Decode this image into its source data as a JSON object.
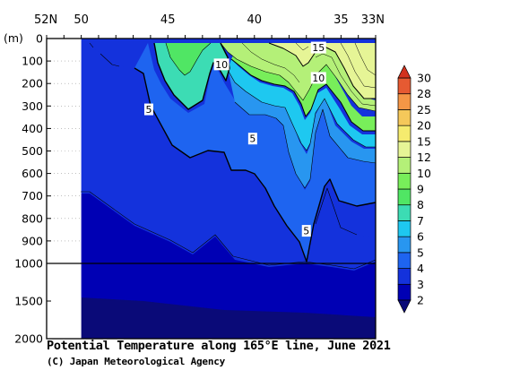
{
  "chart_data": {
    "type": "contour section",
    "title": "Potential Temperature along 165°E line, June 2021",
    "credit": "(C) Japan Meteorological Agency",
    "x_axis": {
      "ticks": [
        "52N",
        "50",
        "45",
        "40",
        "35",
        "33N"
      ],
      "tick_values": [
        52,
        50,
        45,
        40,
        35,
        33
      ],
      "range": [
        52,
        33
      ]
    },
    "y_axis": {
      "unit": "(m)",
      "upper_ticks": [
        0,
        100,
        200,
        300,
        400,
        500,
        600,
        700,
        800,
        900,
        1000
      ],
      "lower_ticks": [
        1500,
        2000
      ],
      "upper_range": [
        0,
        1000
      ],
      "lower_range": [
        1000,
        2000
      ]
    },
    "no_data_range_lat": [
      52,
      50
    ],
    "colorbar": {
      "levels": [
        2,
        3,
        4,
        5,
        6,
        7,
        8,
        9,
        10,
        12,
        15,
        20,
        25,
        28,
        30
      ],
      "colors": [
        "#0a0a78",
        "#0000b4",
        "#1432dc",
        "#1e64f0",
        "#2896f0",
        "#1ec8f0",
        "#3cdcb4",
        "#50e664",
        "#78ee5a",
        "#b4f078",
        "#e6f596",
        "#f5eb6e",
        "#f5c85a",
        "#f59646",
        "#e65a32",
        "#d2321e"
      ]
    },
    "contour_labels": [
      {
        "text": "15",
        "lat": 36.3,
        "depth": 40
      },
      {
        "text": "10",
        "lat": 41.9,
        "depth": 115
      },
      {
        "text": "10",
        "lat": 36.3,
        "depth": 175
      },
      {
        "text": "5",
        "lat": 46.1,
        "depth": 315
      },
      {
        "text": "5",
        "lat": 40.1,
        "depth": 445
      },
      {
        "text": "5",
        "lat": 37.0,
        "depth": 855
      }
    ]
  }
}
